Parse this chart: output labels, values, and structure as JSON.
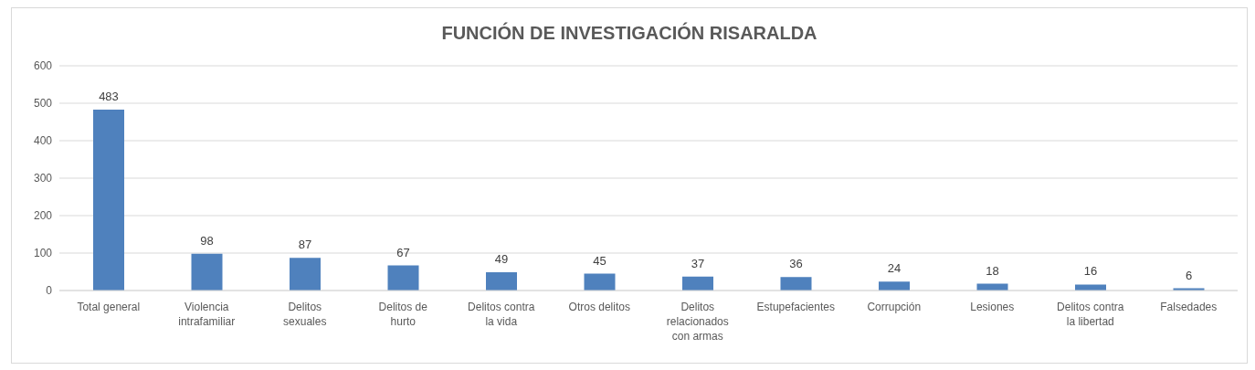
{
  "chart_data": {
    "type": "bar",
    "title": "FUNCIÓN DE INVESTIGACIÓN RISARALDA",
    "categories": [
      "Total general",
      "Violencia intrafamiliar",
      "Delitos sexuales",
      "Delitos de hurto",
      "Delitos contra la vida",
      "Otros delitos",
      "Delitos relacionados con armas",
      "Estupefacientes",
      "Corrupción",
      "Lesiones",
      "Delitos contra la libertad",
      "Falsedades"
    ],
    "values": [
      483,
      98,
      87,
      67,
      49,
      45,
      37,
      36,
      24,
      18,
      16,
      6
    ],
    "color": "#4f81bd",
    "ylim": [
      0,
      600
    ],
    "yticks": [
      0,
      100,
      200,
      300,
      400,
      500,
      600
    ],
    "grid": "y",
    "data_labels": true
  }
}
